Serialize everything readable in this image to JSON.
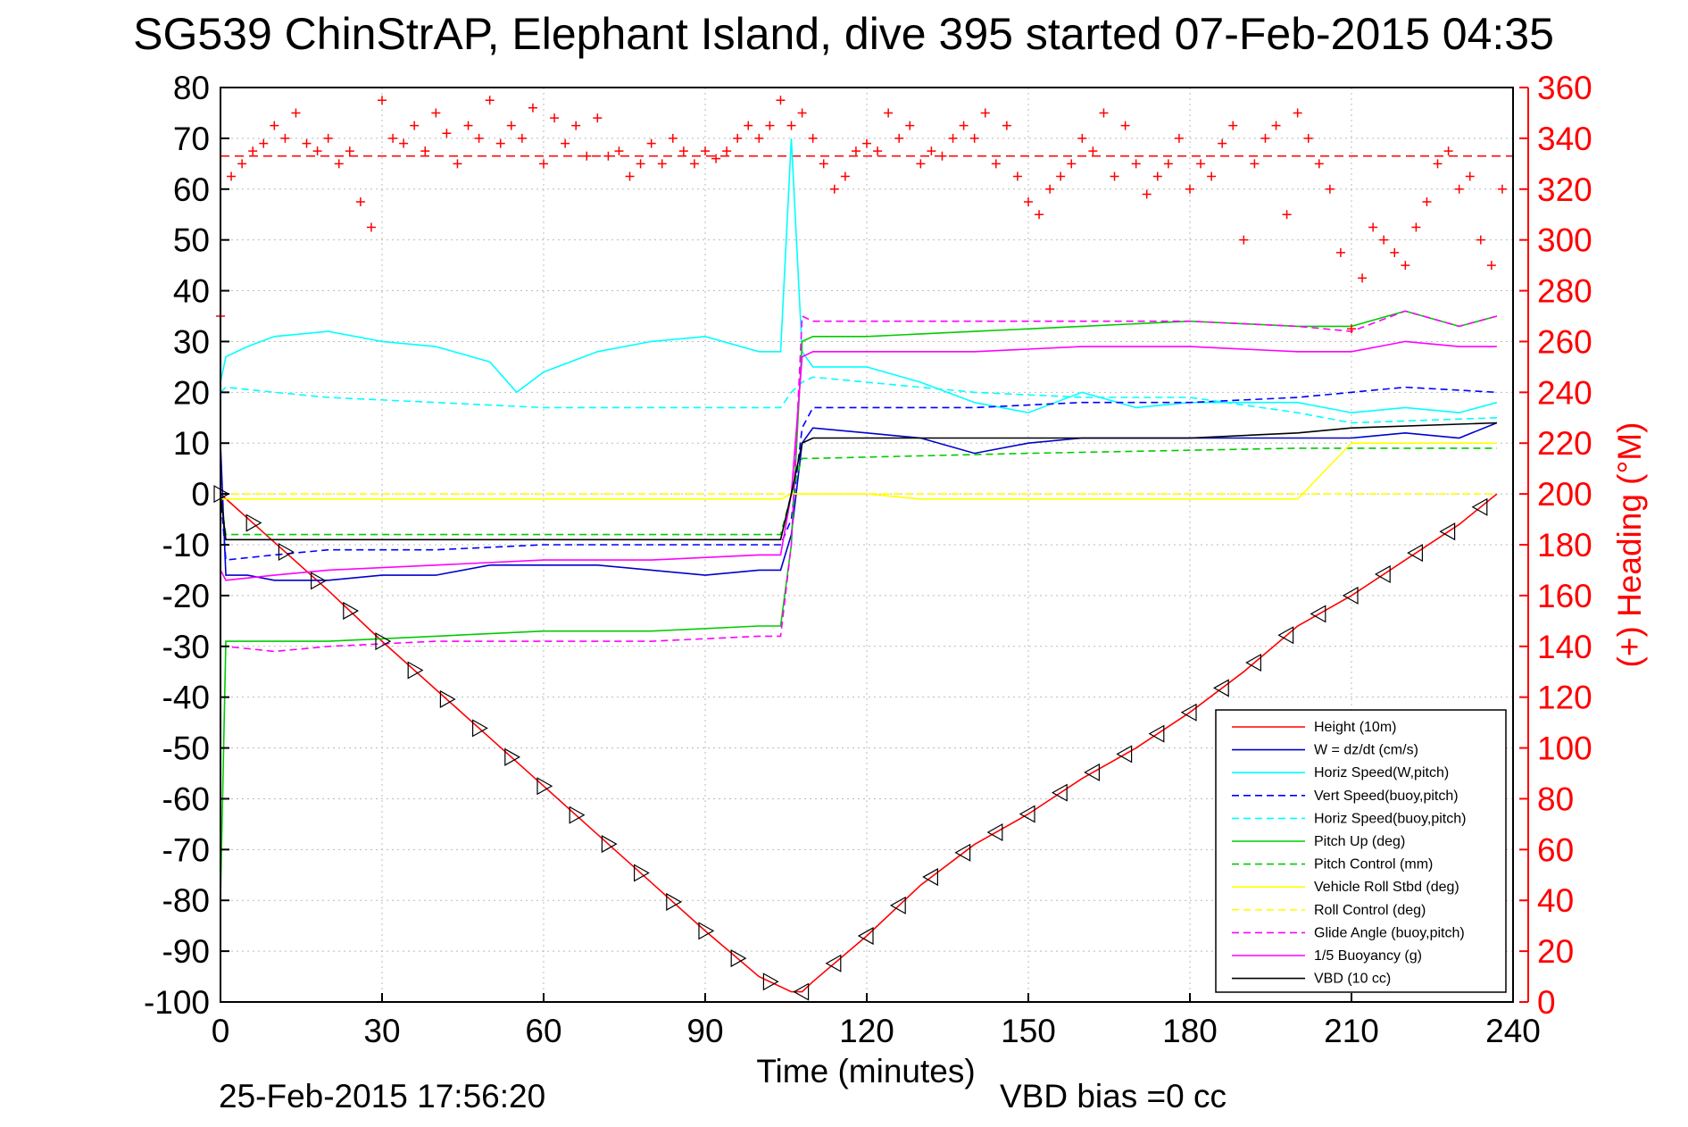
{
  "chart_data": {
    "type": "line",
    "title": "SG539 ChinStrAP, Elephant Island, dive 395 started 07-Feb-2015 04:35",
    "xlabel": "Time (minutes)",
    "ylabel": "",
    "ylabel_right": "(+) Heading (°M)",
    "xlim": [
      0,
      240
    ],
    "ylim": [
      -100,
      80
    ],
    "ylim_right": [
      0,
      360
    ],
    "x_ticks": [
      "0",
      "30",
      "60",
      "90",
      "120",
      "150",
      "180",
      "210",
      "240"
    ],
    "y_ticks": [
      "-100",
      "-90",
      "-80",
      "-70",
      "-60",
      "-50",
      "-40",
      "-30",
      "-20",
      "-10",
      "0",
      "10",
      "20",
      "30",
      "40",
      "50",
      "60",
      "70",
      "80"
    ],
    "y_ticks_right": [
      "0",
      "20",
      "40",
      "60",
      "80",
      "100",
      "120",
      "140",
      "160",
      "180",
      "200",
      "220",
      "240",
      "260",
      "280",
      "300",
      "320",
      "340",
      "360"
    ],
    "grid": true,
    "legend_position": "bottom-right",
    "colors": {
      "height": "#ff0000",
      "w": "#0000cc",
      "horiz_speed": "#00ffff",
      "vert_speed": "#0000ff",
      "horiz_speed_buoy": "#00ffff",
      "pitch_up": "#00cc00",
      "pitch_control": "#00cc00",
      "roll": "#ffff00",
      "roll_control": "#ffff00",
      "glide_angle": "#ff00ff",
      "buoyancy": "#ff00ff",
      "vbd": "#000000",
      "heading": "#ff0000"
    },
    "series": [
      {
        "name": "Height (10m)",
        "style": "solid",
        "color": "#ff0000",
        "x": [
          0,
          10,
          20,
          30,
          40,
          50,
          60,
          70,
          80,
          90,
          100,
          106,
          108,
          110,
          120,
          130,
          140,
          150,
          160,
          170,
          180,
          190,
          200,
          210,
          220,
          230,
          237
        ],
        "y": [
          0,
          -9.5,
          -19,
          -29,
          -38.5,
          -48,
          -57.5,
          -67,
          -76.5,
          -86,
          -95,
          -98,
          -98,
          -96,
          -87,
          -77,
          -69,
          -63,
          -56,
          -50,
          -43,
          -35,
          -26,
          -20,
          -13,
          -6,
          0
        ]
      },
      {
        "name": "W = dz/dt (cm/s)",
        "style": "solid",
        "color": "#0000cc",
        "x": [
          0,
          1,
          5,
          10,
          20,
          30,
          40,
          50,
          60,
          70,
          80,
          90,
          100,
          104,
          106,
          108,
          110,
          120,
          130,
          140,
          150,
          160,
          170,
          180,
          190,
          200,
          210,
          220,
          230,
          237
        ],
        "y": [
          10,
          -16,
          -16,
          -17,
          -17,
          -16,
          -16,
          -14,
          -14,
          -14,
          -15,
          -16,
          -15,
          -15,
          -8,
          10,
          13,
          12,
          11,
          8,
          10,
          11,
          11,
          11,
          11,
          11,
          11,
          12,
          11,
          14
        ]
      },
      {
        "name": "Horiz Speed(W,pitch)",
        "style": "solid",
        "color": "#00ffff",
        "x": [
          0,
          1,
          5,
          10,
          20,
          30,
          40,
          50,
          55,
          60,
          70,
          80,
          90,
          100,
          104,
          106,
          108,
          110,
          120,
          130,
          140,
          150,
          160,
          170,
          180,
          190,
          200,
          210,
          220,
          230,
          237
        ],
        "y": [
          22,
          27,
          29,
          31,
          32,
          30,
          29,
          26,
          20,
          24,
          28,
          30,
          31,
          28,
          28,
          70,
          28,
          25,
          25,
          22,
          18,
          16,
          20,
          17,
          18,
          18,
          18,
          16,
          17,
          16,
          18
        ]
      },
      {
        "name": "Vert Speed(buoy,pitch)",
        "style": "dashed",
        "color": "#0000ff",
        "x": [
          0,
          1,
          10,
          20,
          40,
          60,
          80,
          100,
          104,
          106,
          108,
          110,
          120,
          140,
          160,
          180,
          200,
          210,
          220,
          237
        ],
        "y": [
          0,
          -13,
          -12,
          -11,
          -11,
          -10,
          -10,
          -10,
          -10,
          -5,
          13,
          17,
          17,
          17,
          18,
          18,
          19,
          20,
          21,
          20
        ]
      },
      {
        "name": "Horiz Speed(buoy,pitch)",
        "style": "dashed",
        "color": "#00ffff",
        "x": [
          0,
          1,
          10,
          20,
          40,
          60,
          80,
          100,
          104,
          106,
          108,
          110,
          120,
          140,
          160,
          180,
          200,
          210,
          237
        ],
        "y": [
          20,
          21,
          20,
          19,
          18,
          17,
          17,
          17,
          17,
          20,
          22,
          23,
          22,
          20,
          19,
          19,
          16,
          14,
          15
        ]
      },
      {
        "name": "Pitch Up (deg)",
        "style": "solid",
        "color": "#00cc00",
        "x": [
          0,
          1,
          5,
          10,
          20,
          40,
          60,
          80,
          100,
          104,
          106,
          108,
          110,
          120,
          140,
          160,
          180,
          200,
          210,
          220,
          230,
          237
        ],
        "y": [
          -80,
          -29,
          -29,
          -29,
          -29,
          -28,
          -27,
          -27,
          -26,
          -26,
          -10,
          30,
          31,
          31,
          32,
          33,
          34,
          33,
          33,
          36,
          33,
          35
        ]
      },
      {
        "name": "Pitch Control (mm)",
        "style": "dashed",
        "color": "#00cc00",
        "x": [
          0,
          1,
          50,
          104,
          106,
          108,
          110,
          150,
          200,
          237
        ],
        "y": [
          0,
          -8,
          -8,
          -8,
          0,
          7,
          7,
          8,
          9,
          9
        ]
      },
      {
        "name": "Vehicle Roll Stbd (deg)",
        "style": "solid",
        "color": "#ffff00",
        "x": [
          0,
          10,
          20,
          30,
          40,
          50,
          60,
          70,
          80,
          90,
          100,
          104,
          106,
          110,
          120,
          130,
          140,
          150,
          160,
          170,
          180,
          190,
          200,
          210,
          220,
          230,
          237
        ],
        "y": [
          -1,
          -1,
          -1,
          -1,
          -1,
          -1,
          -1,
          -1,
          -1,
          -1,
          -1,
          -1,
          0,
          0,
          0,
          -1,
          -1,
          -1,
          -1,
          -1,
          -1,
          -1,
          -1,
          10,
          10,
          10,
          10
        ]
      },
      {
        "name": "Roll Control (deg)",
        "style": "dashed",
        "color": "#ffff00",
        "x": [
          0,
          1,
          104,
          106,
          110,
          237
        ],
        "y": [
          0,
          0,
          0,
          0,
          0,
          0
        ]
      },
      {
        "name": "Glide Angle (buoy,pitch)",
        "style": "dashed",
        "color": "#ff00ff",
        "x": [
          0,
          1,
          10,
          20,
          40,
          60,
          80,
          100,
          104,
          106,
          108,
          110,
          120,
          140,
          160,
          180,
          200,
          210,
          220,
          230,
          237
        ],
        "y": [
          -30,
          -30,
          -31,
          -30,
          -29,
          -29,
          -29,
          -28,
          -28,
          -10,
          35,
          34,
          34,
          34,
          34,
          34,
          33,
          32,
          36,
          33,
          35
        ]
      },
      {
        "name": "1/5 Buoyancy (g)",
        "style": "solid",
        "color": "#ff00ff",
        "x": [
          0,
          1,
          10,
          20,
          40,
          60,
          80,
          100,
          104,
          106,
          108,
          110,
          120,
          140,
          160,
          180,
          200,
          210,
          220,
          230,
          237
        ],
        "y": [
          -15,
          -17,
          -16,
          -15,
          -14,
          -13,
          -13,
          -12,
          -12,
          0,
          27,
          28,
          28,
          28,
          29,
          29,
          28,
          28,
          30,
          29,
          29
        ]
      },
      {
        "name": "VBD (10 cc)",
        "style": "solid",
        "color": "#000000",
        "x": [
          0,
          1,
          10,
          50,
          104,
          106,
          108,
          110,
          120,
          150,
          180,
          200,
          210,
          237
        ],
        "y": [
          0,
          -9,
          -9,
          -9,
          -9,
          0,
          10,
          11,
          11,
          11,
          11,
          12,
          13,
          14
        ]
      }
    ],
    "heading": {
      "name": "(+) Heading (°M)",
      "color": "#ff0000",
      "mean": 333,
      "x": [
        0,
        2,
        4,
        6,
        8,
        10,
        12,
        14,
        16,
        18,
        20,
        22,
        24,
        26,
        28,
        30,
        32,
        34,
        36,
        38,
        40,
        42,
        44,
        46,
        48,
        50,
        52,
        54,
        56,
        58,
        60,
        62,
        64,
        66,
        68,
        70,
        72,
        74,
        76,
        78,
        80,
        82,
        84,
        86,
        88,
        90,
        92,
        94,
        96,
        98,
        100,
        102,
        104,
        106,
        108,
        110,
        112,
        114,
        116,
        118,
        120,
        122,
        124,
        126,
        128,
        130,
        132,
        134,
        136,
        138,
        140,
        142,
        144,
        146,
        148,
        150,
        152,
        154,
        156,
        158,
        160,
        162,
        164,
        166,
        168,
        170,
        172,
        174,
        176,
        178,
        180,
        182,
        184,
        186,
        188,
        190,
        192,
        194,
        196,
        198,
        200,
        202,
        204,
        206,
        208,
        210,
        212,
        214,
        216,
        218,
        220,
        222,
        224,
        226,
        228,
        230,
        232,
        234,
        236,
        238
      ],
      "y": [
        270,
        325,
        330,
        335,
        338,
        345,
        340,
        350,
        338,
        335,
        340,
        330,
        335,
        315,
        305,
        355,
        340,
        338,
        345,
        335,
        350,
        342,
        330,
        345,
        340,
        355,
        338,
        345,
        340,
        352,
        330,
        348,
        338,
        345,
        333,
        348,
        333,
        335,
        325,
        330,
        338,
        330,
        340,
        335,
        330,
        335,
        332,
        335,
        340,
        345,
        340,
        345,
        355,
        345,
        350,
        340,
        330,
        320,
        325,
        335,
        338,
        335,
        350,
        340,
        345,
        330,
        335,
        333,
        340,
        345,
        340,
        350,
        330,
        345,
        325,
        315,
        310,
        320,
        325,
        330,
        340,
        335,
        350,
        325,
        345,
        330,
        318,
        325,
        330,
        340,
        320,
        330,
        325,
        338,
        345,
        300,
        330,
        340,
        345,
        310,
        350,
        340,
        330,
        320,
        295,
        265,
        285,
        305,
        300,
        295,
        290,
        305,
        315,
        330,
        335,
        320,
        325,
        300,
        290,
        320
      ]
    }
  },
  "footer": {
    "timestamp": "25-Feb-2015 17:56:20",
    "vbd_bias": "VBD bias =0 cc"
  }
}
